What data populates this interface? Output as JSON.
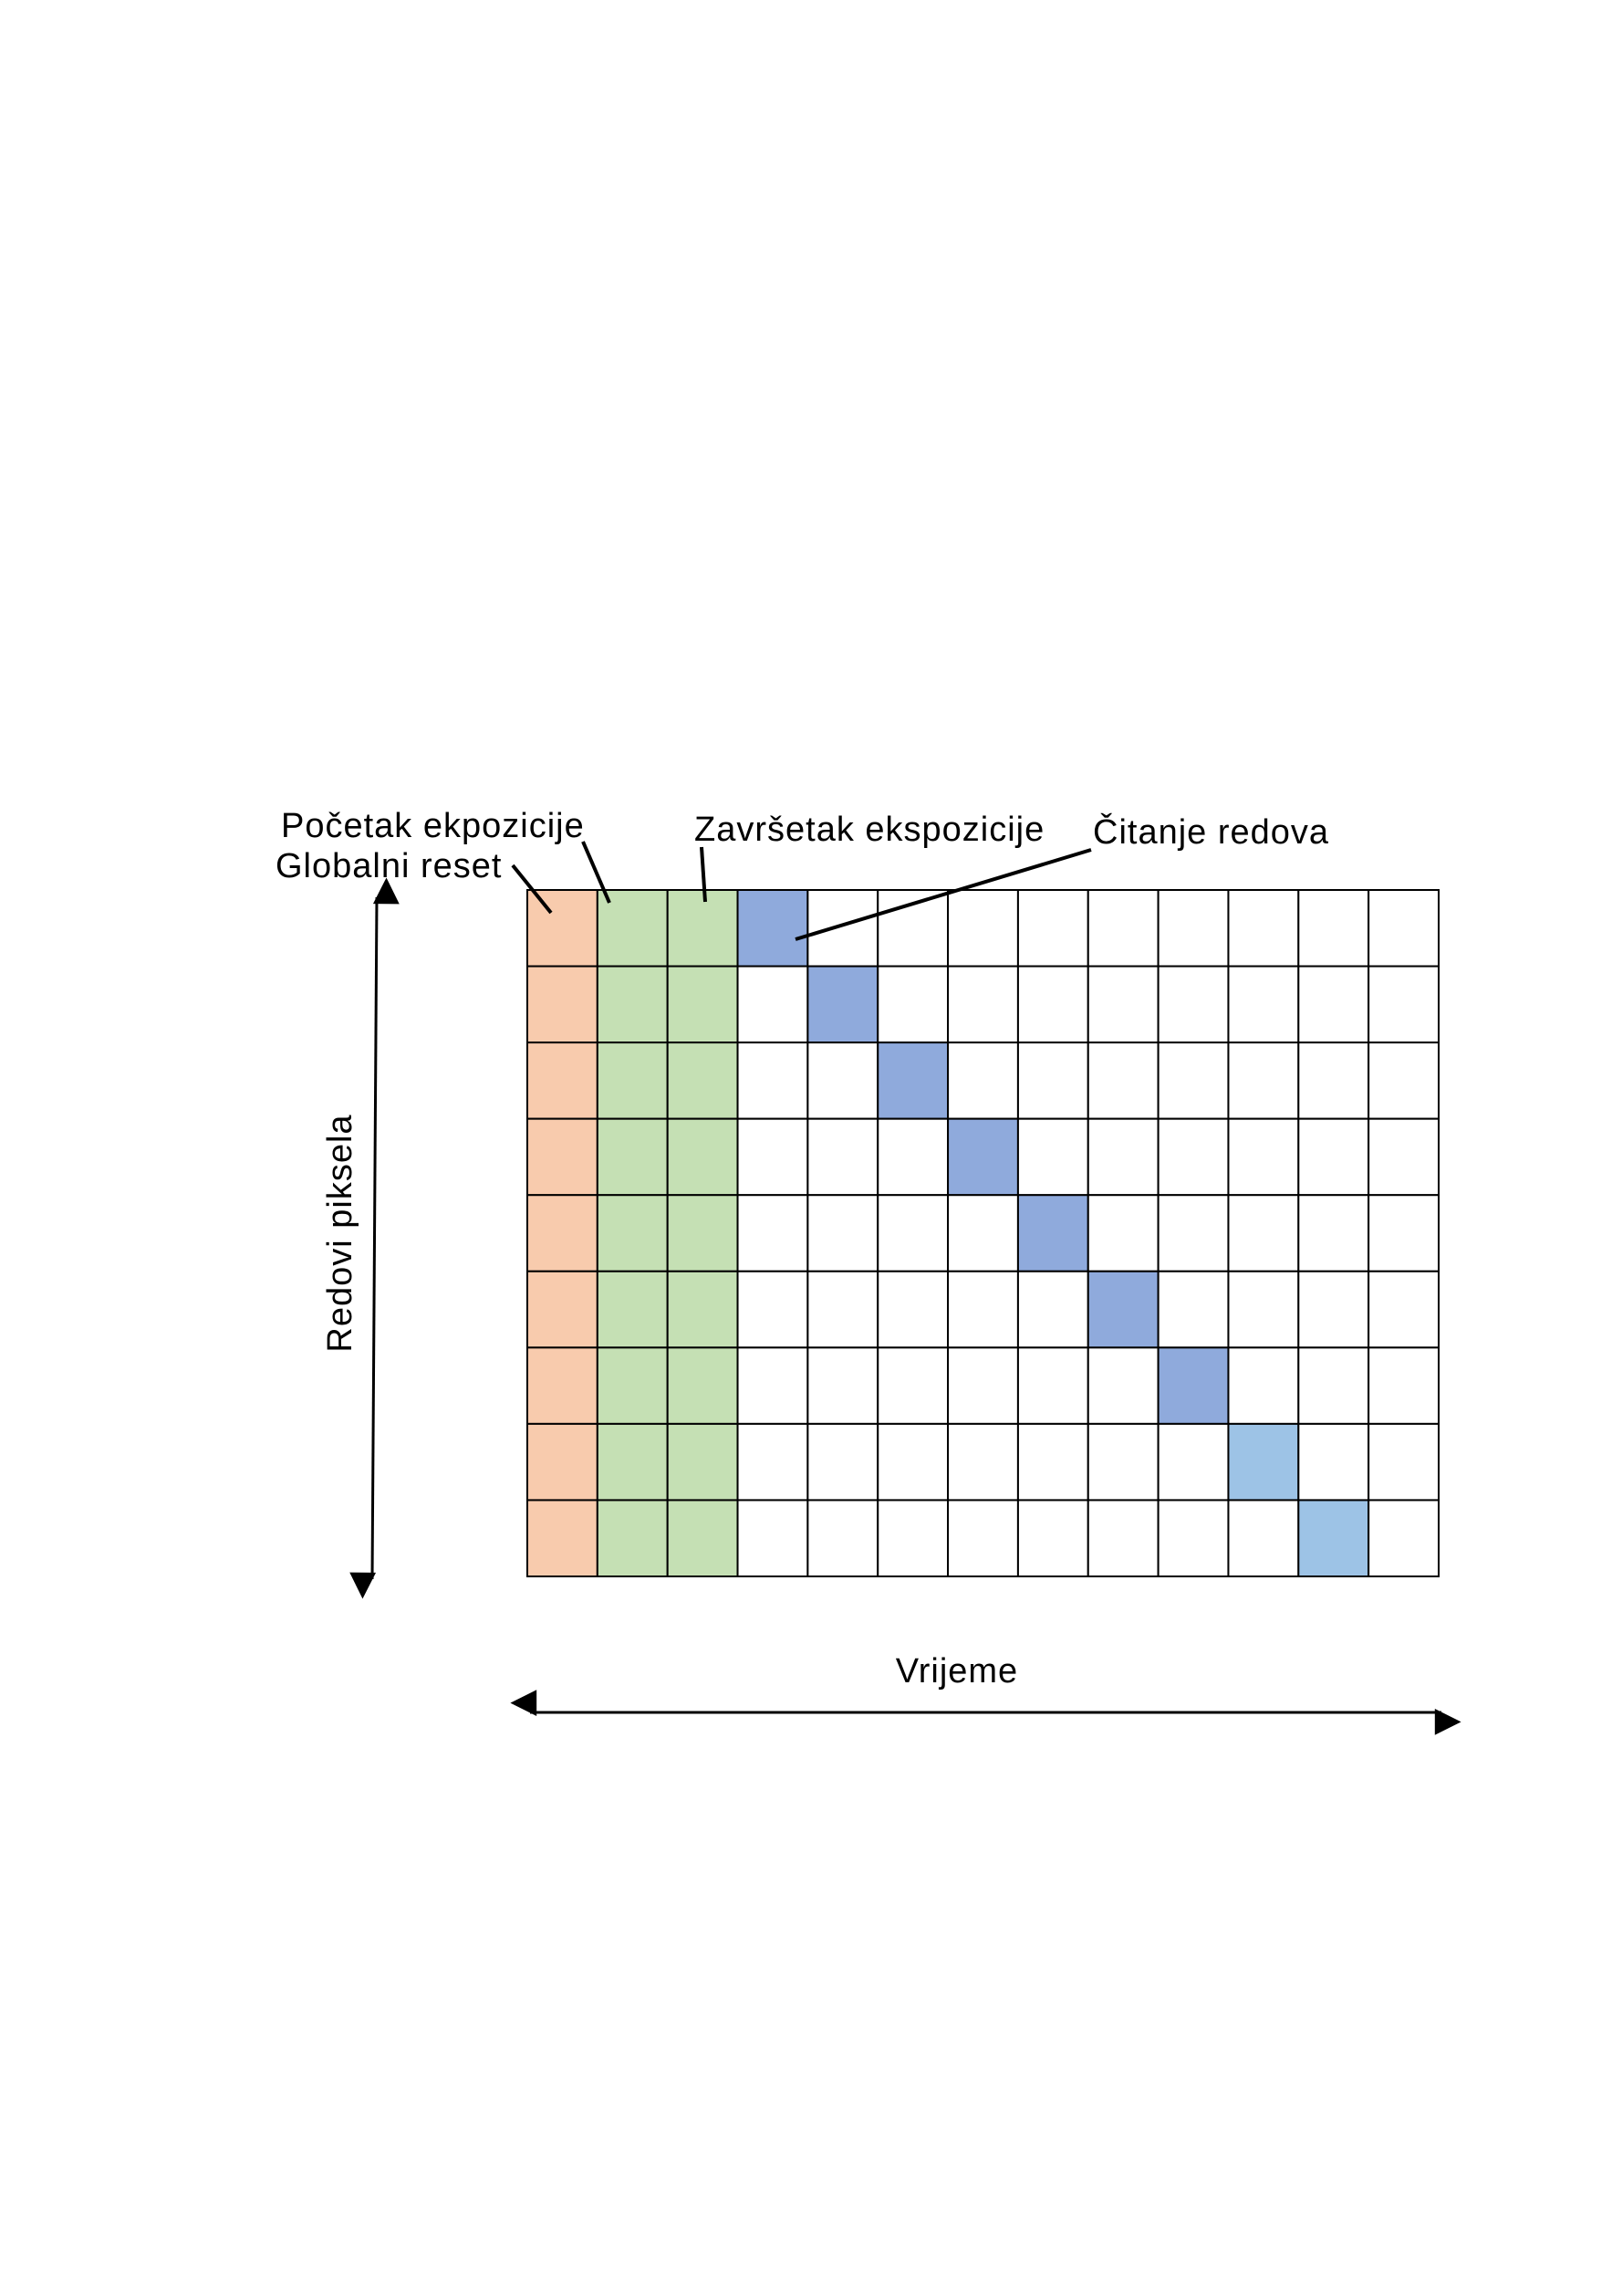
{
  "labels": {
    "global_reset": "Globalni reset",
    "exposure_start": "Početak ekpozicije",
    "exposure_end": "Završetak ekspozicije",
    "row_readout": "Čitanje redova",
    "y_axis": "Redovi piksela",
    "x_axis": "Vrijeme"
  }
}
